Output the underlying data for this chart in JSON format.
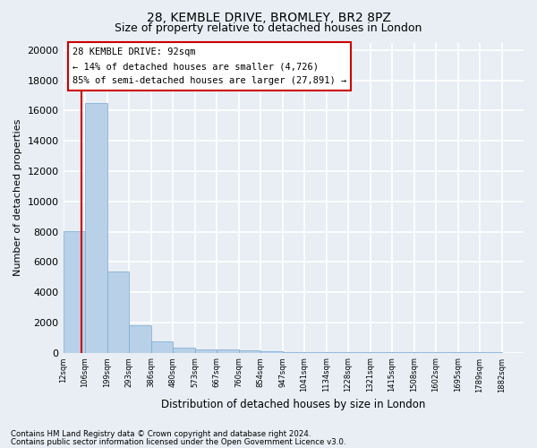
{
  "title": "28, KEMBLE DRIVE, BROMLEY, BR2 8PZ",
  "subtitle": "Size of property relative to detached houses in London",
  "xlabel": "Distribution of detached houses by size in London",
  "ylabel": "Number of detached properties",
  "bar_color": "#b8d0e8",
  "bar_edge_color": "#7aaace",
  "property_line_color": "#cc0000",
  "property_size": 92,
  "annotation_title": "28 KEMBLE DRIVE: 92sqm",
  "annotation_line1": "← 14% of detached houses are smaller (4,726)",
  "annotation_line2": "85% of semi-detached houses are larger (27,891) →",
  "footnote1": "Contains HM Land Registry data © Crown copyright and database right 2024.",
  "footnote2": "Contains public sector information licensed under the Open Government Licence v3.0.",
  "bin_labels": [
    "12sqm",
    "106sqm",
    "199sqm",
    "293sqm",
    "386sqm",
    "480sqm",
    "573sqm",
    "667sqm",
    "760sqm",
    "854sqm",
    "947sqm",
    "1041sqm",
    "1134sqm",
    "1228sqm",
    "1321sqm",
    "1415sqm",
    "1508sqm",
    "1602sqm",
    "1695sqm",
    "1789sqm",
    "1882sqm"
  ],
  "bar_heights": [
    8050,
    16500,
    5350,
    1800,
    720,
    350,
    220,
    200,
    130,
    80,
    50,
    35,
    25,
    20,
    15,
    12,
    10,
    8,
    6,
    5,
    0
  ],
  "bin_edges": [
    12,
    106,
    199,
    293,
    386,
    480,
    573,
    667,
    760,
    854,
    947,
    1041,
    1134,
    1228,
    1321,
    1415,
    1508,
    1602,
    1695,
    1789,
    1882
  ],
  "ylim": [
    0,
    20500
  ],
  "yticks": [
    0,
    2000,
    4000,
    6000,
    8000,
    10000,
    12000,
    14000,
    16000,
    18000,
    20000
  ],
  "background_color": "#e8eef4",
  "grid_color": "#ffffff",
  "title_fontsize": 10,
  "subtitle_fontsize": 9,
  "annotation_box_color": "#ffffff",
  "annotation_border_color": "#cc0000"
}
